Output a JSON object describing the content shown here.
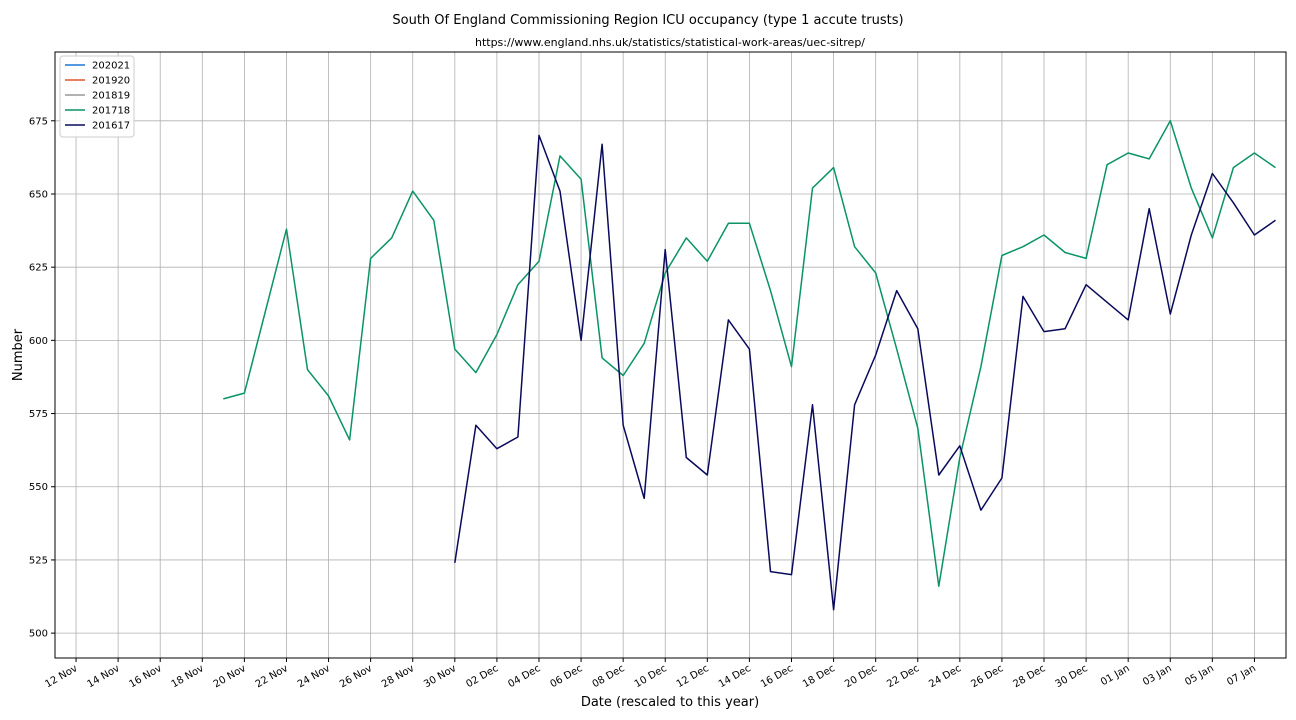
{
  "chart_data": {
    "type": "line",
    "title": "South Of England Commissioning Region ICU occupancy (type 1 accute trusts)",
    "subtitle": "https://www.england.nhs.uk/statistics/statistical-work-areas/uec-sitrep/",
    "xlabel": "Date (rescaled to this year)",
    "ylabel": "Number",
    "ylim": [
      491.5,
      698.5
    ],
    "xlim": [
      -1,
      57.5
    ],
    "grid": true,
    "legend_position": "top-left",
    "x_ticks": [
      {
        "pos": 0,
        "label": "12 Nov"
      },
      {
        "pos": 2,
        "label": "14 Nov"
      },
      {
        "pos": 4,
        "label": "16 Nov"
      },
      {
        "pos": 6,
        "label": "18 Nov"
      },
      {
        "pos": 8,
        "label": "20 Nov"
      },
      {
        "pos": 10,
        "label": "22 Nov"
      },
      {
        "pos": 12,
        "label": "24 Nov"
      },
      {
        "pos": 14,
        "label": "26 Nov"
      },
      {
        "pos": 16,
        "label": "28 Nov"
      },
      {
        "pos": 18,
        "label": "30 Nov"
      },
      {
        "pos": 20,
        "label": "02 Dec"
      },
      {
        "pos": 22,
        "label": "04 Dec"
      },
      {
        "pos": 24,
        "label": "06 Dec"
      },
      {
        "pos": 26,
        "label": "08 Dec"
      },
      {
        "pos": 28,
        "label": "10 Dec"
      },
      {
        "pos": 30,
        "label": "12 Dec"
      },
      {
        "pos": 32,
        "label": "14 Dec"
      },
      {
        "pos": 34,
        "label": "16 Dec"
      },
      {
        "pos": 36,
        "label": "18 Dec"
      },
      {
        "pos": 38,
        "label": "20 Dec"
      },
      {
        "pos": 40,
        "label": "22 Dec"
      },
      {
        "pos": 42,
        "label": "24 Dec"
      },
      {
        "pos": 44,
        "label": "26 Dec"
      },
      {
        "pos": 46,
        "label": "28 Dec"
      },
      {
        "pos": 48,
        "label": "30 Dec"
      },
      {
        "pos": 50,
        "label": "01 Jan"
      },
      {
        "pos": 52,
        "label": "03 Jan"
      },
      {
        "pos": 54,
        "label": "05 Jan"
      },
      {
        "pos": 56,
        "label": "07 Jan"
      }
    ],
    "y_ticks": [
      500,
      525,
      550,
      575,
      600,
      625,
      650,
      675
    ],
    "series": [
      {
        "name": "202021",
        "color": "#1f77d4",
        "points": []
      },
      {
        "name": "201920",
        "color": "#e0532e",
        "points": []
      },
      {
        "name": "201819",
        "color": "#999999",
        "points": []
      },
      {
        "name": "201718",
        "color": "#0a9464",
        "points": [
          [
            7,
            580
          ],
          [
            8,
            582
          ],
          [
            10,
            638
          ],
          [
            11,
            590
          ],
          [
            12,
            581
          ],
          [
            13,
            566
          ],
          [
            14,
            628
          ],
          [
            15,
            635
          ],
          [
            16,
            651
          ],
          [
            17,
            641
          ],
          [
            18,
            597
          ],
          [
            19,
            589
          ],
          [
            20,
            602
          ],
          [
            21,
            619
          ],
          [
            22,
            627
          ],
          [
            23,
            663
          ],
          [
            24,
            655
          ],
          [
            25,
            594
          ],
          [
            26,
            588
          ],
          [
            27,
            599
          ],
          [
            28,
            623
          ],
          [
            29,
            635
          ],
          [
            30,
            627
          ],
          [
            31,
            640
          ],
          [
            32,
            640
          ],
          [
            33,
            617
          ],
          [
            34,
            591
          ],
          [
            35,
            652
          ],
          [
            36,
            659
          ],
          [
            37,
            632
          ],
          [
            38,
            623
          ],
          [
            39,
            597
          ],
          [
            40,
            570
          ],
          [
            41,
            516
          ],
          [
            42,
            560
          ],
          [
            43,
            591
          ],
          [
            44,
            629
          ],
          [
            45,
            632
          ],
          [
            46,
            636
          ],
          [
            47,
            630
          ],
          [
            48,
            628
          ],
          [
            49,
            660
          ],
          [
            50,
            664
          ],
          [
            51,
            662
          ],
          [
            52,
            675
          ],
          [
            53,
            652
          ],
          [
            54,
            635
          ],
          [
            55,
            659
          ],
          [
            56,
            664
          ],
          [
            57,
            659
          ]
        ]
      },
      {
        "name": "201617",
        "color": "#0a0a5c",
        "points": [
          [
            18,
            524
          ],
          [
            19,
            571
          ],
          [
            20,
            563
          ],
          [
            21,
            567
          ],
          [
            22,
            670
          ],
          [
            23,
            651
          ],
          [
            24,
            600
          ],
          [
            25,
            667
          ],
          [
            26,
            571
          ],
          [
            27,
            546
          ],
          [
            28,
            631
          ],
          [
            29,
            560
          ],
          [
            30,
            554
          ],
          [
            31,
            607
          ],
          [
            32,
            597
          ],
          [
            33,
            521
          ],
          [
            34,
            520
          ],
          [
            35,
            578
          ],
          [
            36,
            508
          ],
          [
            37,
            578
          ],
          [
            38,
            595
          ],
          [
            39,
            617
          ],
          [
            40,
            604
          ],
          [
            41,
            554
          ],
          [
            42,
            564
          ],
          [
            43,
            542
          ],
          [
            44,
            553
          ],
          [
            45,
            615
          ],
          [
            46,
            603
          ],
          [
            47,
            604
          ],
          [
            48,
            619
          ],
          [
            49,
            613
          ],
          [
            50,
            607
          ],
          [
            51,
            645
          ],
          [
            52,
            609
          ],
          [
            53,
            636
          ],
          [
            54,
            657
          ],
          [
            55,
            647
          ],
          [
            56,
            636
          ],
          [
            57,
            641
          ]
        ]
      }
    ]
  }
}
